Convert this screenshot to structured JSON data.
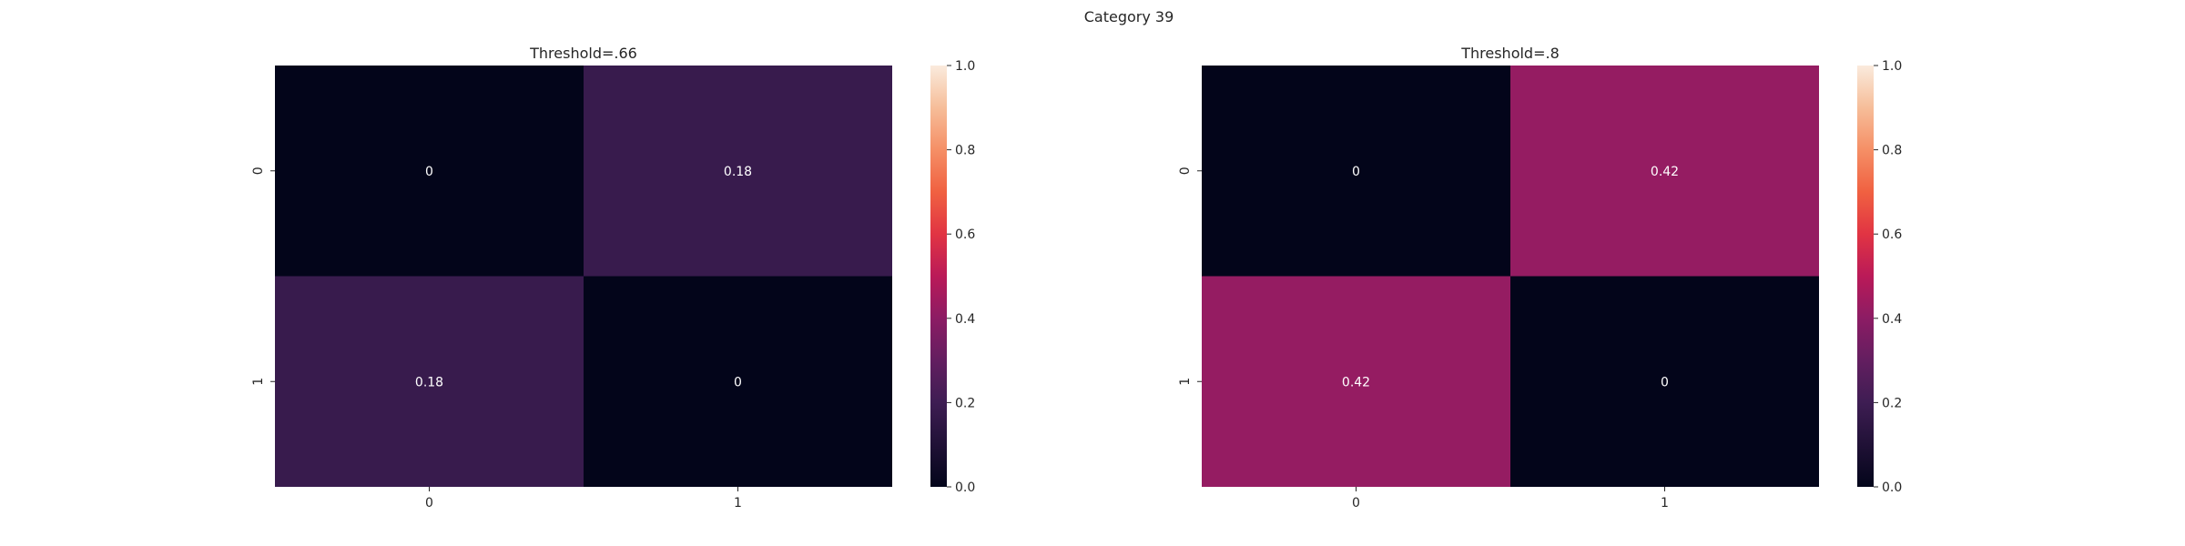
{
  "figure": {
    "suptitle": "Category 39"
  },
  "chart_data": [
    {
      "type": "heatmap",
      "title": "Threshold=.66",
      "xticklabels": [
        "0",
        "1"
      ],
      "yticklabels": [
        "0",
        "1"
      ],
      "values": [
        [
          0,
          0.18
        ],
        [
          0.18,
          0
        ]
      ],
      "cell_labels": [
        [
          "0",
          "0.18"
        ],
        [
          "0.18",
          "0"
        ]
      ],
      "vmin": 0,
      "vmax": 1,
      "colorbar": {
        "ticks": [
          "0.0",
          "0.2",
          "0.4",
          "0.6",
          "0.8",
          "1.0"
        ]
      },
      "grid": false
    },
    {
      "type": "heatmap",
      "title": "Threshold=.8",
      "xticklabels": [
        "0",
        "1"
      ],
      "yticklabels": [
        "0",
        "1"
      ],
      "values": [
        [
          0,
          0.42
        ],
        [
          0.42,
          0
        ]
      ],
      "cell_labels": [
        [
          "0",
          "0.42"
        ],
        [
          "0.42",
          "0"
        ]
      ],
      "vmin": 0,
      "vmax": 1,
      "colorbar": {
        "ticks": [
          "0.0",
          "0.2",
          "0.4",
          "0.6",
          "0.8",
          "1.0"
        ]
      },
      "grid": false
    }
  ]
}
